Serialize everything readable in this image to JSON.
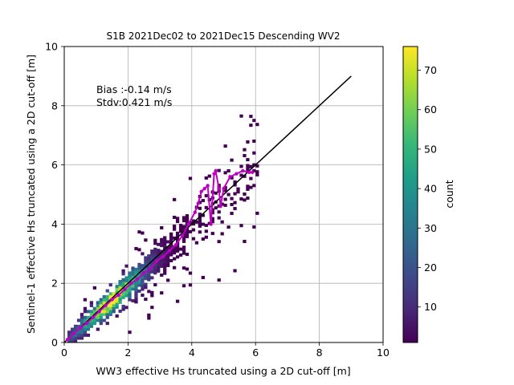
{
  "chart_data": {
    "type": "heatmap",
    "title": "S1B 2021Dec02 to 2021Dec15 Descending WV2",
    "xlabel": "WW3 effective Hs truncated using a 2D cut-off [m]",
    "ylabel": "Sentinel-1 effective Hs truncated using a 2D cut-off [m]",
    "xlim": [
      0,
      10
    ],
    "ylim": [
      0,
      10
    ],
    "x_ticks": [
      "0",
      "2",
      "4",
      "6",
      "8",
      "10"
    ],
    "y_ticks": [
      "0",
      "2",
      "4",
      "6",
      "8",
      "10"
    ],
    "grid": true,
    "annotations": [
      "Bias :-0.14 m/s",
      "Stdv:0.421 m/s"
    ],
    "colorbar": {
      "label": "count",
      "range": [
        1,
        76
      ],
      "ticks": [
        "10",
        "20",
        "30",
        "40",
        "50",
        "60",
        "70"
      ],
      "colormap": [
        "#440154",
        "#482878",
        "#3e4a89",
        "#31688e",
        "#26828e",
        "#1f9e89",
        "#35b779",
        "#6ece58",
        "#b5de2b",
        "#fde725"
      ]
    },
    "bin_width": 0.1,
    "density_bands": [
      {
        "x_from": 0.1,
        "x_to": 6.0,
        "slope": 0.95,
        "spread": 0.6,
        "peak_x": 1.4,
        "max_count": 76
      }
    ],
    "series": [
      {
        "kind": "reference_line",
        "color": "#000000",
        "x": [
          0,
          9
        ],
        "y": [
          0,
          9
        ]
      },
      {
        "kind": "binned_mean",
        "color": "#c000c0",
        "x": [
          0.1,
          0.3,
          0.5,
          0.7,
          0.9,
          1.1,
          1.3,
          1.5,
          1.7,
          1.9,
          2.1,
          2.3,
          2.5,
          2.7,
          2.9,
          3.1,
          3.3,
          3.5,
          3.7,
          3.9,
          4.1,
          4.2,
          4.3,
          4.4,
          4.5,
          4.6,
          4.7,
          4.75,
          4.85,
          4.9,
          5.0,
          5.2,
          5.4,
          5.6,
          5.8,
          5.9
        ],
        "y": [
          0.1,
          0.3,
          0.5,
          0.65,
          0.85,
          1.05,
          1.25,
          1.45,
          1.6,
          1.8,
          2.0,
          2.15,
          2.35,
          2.5,
          2.75,
          2.9,
          3.1,
          3.3,
          3.6,
          4.0,
          4.4,
          4.7,
          5.1,
          5.2,
          5.3,
          4.0,
          5.7,
          5.8,
          5.2,
          4.6,
          5.2,
          5.6,
          5.7,
          5.8,
          5.75,
          5.75
        ]
      }
    ]
  }
}
